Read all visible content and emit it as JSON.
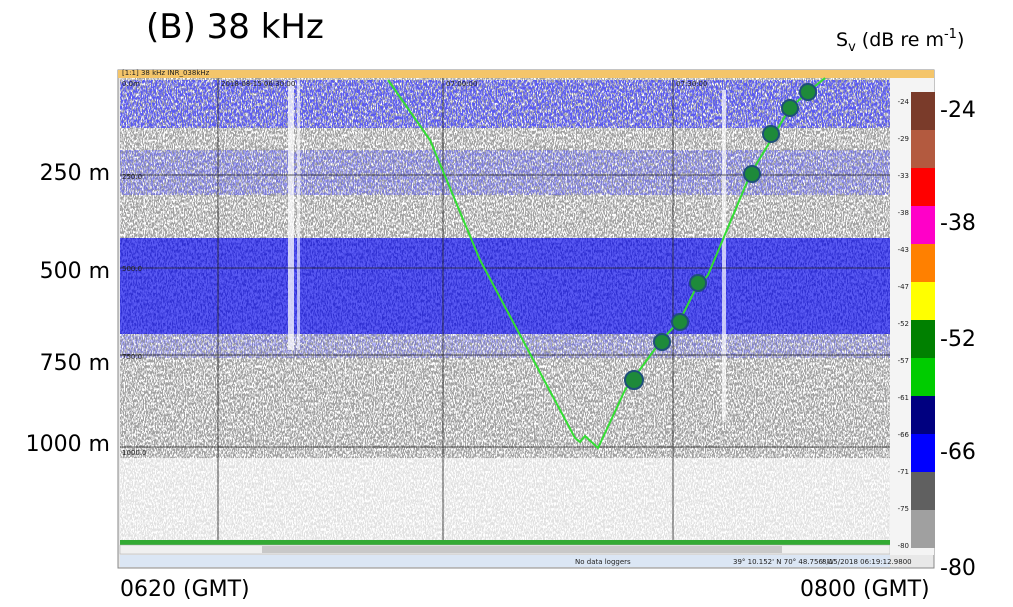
{
  "figure_label": "(B) 38 kHz",
  "scale_title": {
    "symbol": "S",
    "subscript": "v",
    "unit": " (dB re m",
    "superscript": "-1",
    "close": ")"
  },
  "window": {
    "title": "[1:1] 38 kHz INR_038kHz",
    "times": [
      "2018-08-15 06:30:00",
      "07:00:00",
      "07:30:00"
    ],
    "depth_marks": [
      "0.0m",
      "250.0",
      "500.0",
      "750.0",
      "1000.0"
    ],
    "scale_marks": [
      "-24",
      "-29",
      "-33",
      "-38",
      "-43",
      "-47",
      "-52",
      "-57",
      "-61",
      "-66",
      "-71",
      "-75",
      "-80"
    ],
    "status": {
      "loggers": "No data loggers",
      "position": "39° 10.152' N 70° 48.756' W",
      "timestamp": "8/15/2018 06:19:12.9800"
    }
  },
  "depth_labels": [
    "250 m",
    "500 m",
    "750 m",
    "1000 m"
  ],
  "scale_labels": [
    "-24",
    "-38",
    "-52",
    "-66",
    "-80"
  ],
  "time_labels": [
    "0620 (GMT)",
    "0800 (GMT)"
  ]
}
